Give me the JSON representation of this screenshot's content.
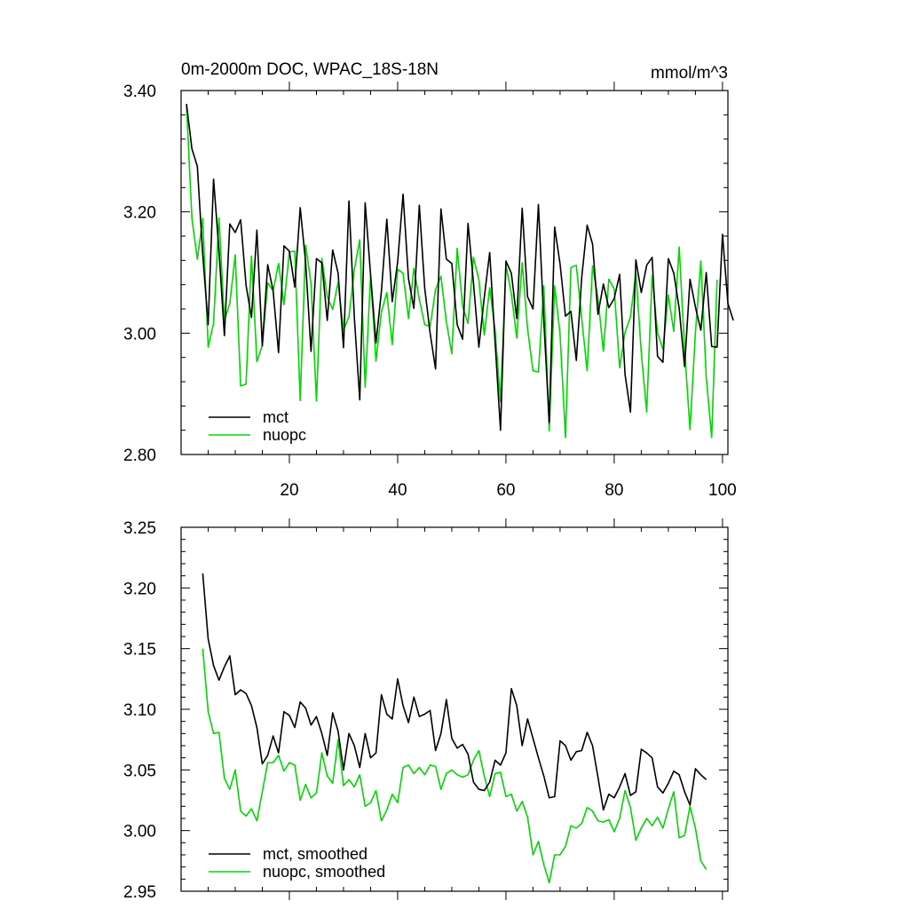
{
  "chart_data": [
    {
      "type": "line",
      "title": "0m-2000m DOC, WPAC_18S-18N",
      "units": "mmol/m^3",
      "xlabel": "",
      "ylabel": "",
      "xlim": [
        0,
        101
      ],
      "ylim": [
        2.8,
        3.4
      ],
      "x_ticks": [
        20,
        40,
        60,
        80,
        100
      ],
      "x_tick_labels": [
        "20",
        "40",
        "60",
        "80",
        "100"
      ],
      "y_ticks": [
        2.8,
        3.0,
        3.2,
        3.4
      ],
      "y_tick_labels": [
        "2.80",
        "3.00",
        "3.20",
        "3.40"
      ],
      "legend_position": "bottom-left",
      "series": [
        {
          "name": "mct",
          "color": "#000000",
          "x_start": 1,
          "values": [
            3.378,
            3.304,
            3.275,
            3.129,
            3.014,
            3.254,
            3.136,
            2.996,
            3.18,
            3.166,
            3.187,
            3.079,
            3.026,
            3.17,
            2.979,
            3.113,
            3.07,
            2.968,
            3.144,
            3.135,
            3.076,
            3.207,
            3.117,
            2.97,
            3.123,
            3.116,
            3.021,
            3.137,
            3.099,
            2.976,
            3.218,
            3.026,
            2.89,
            3.215,
            3.096,
            2.984,
            3.069,
            3.188,
            3.052,
            3.117,
            3.229,
            3.09,
            3.041,
            3.211,
            3.074,
            3.0,
            2.941,
            3.205,
            3.122,
            3.115,
            3.014,
            2.99,
            3.181,
            3.083,
            2.977,
            3.059,
            3.133,
            2.985,
            2.84,
            3.119,
            3.099,
            3.024,
            3.206,
            3.06,
            3.04,
            3.212,
            3.02,
            2.853,
            3.175,
            3.114,
            3.028,
            3.036,
            2.955,
            3.092,
            3.178,
            3.147,
            3.031,
            3.081,
            3.042,
            3.057,
            3.097,
            2.932,
            2.87,
            3.121,
            3.067,
            3.112,
            3.125,
            2.962,
            2.952,
            3.123,
            3.099,
            3.041,
            2.945,
            3.089,
            3.043,
            3.005,
            3.1,
            2.978,
            2.977,
            3.163,
            3.049,
            3.021
          ]
        },
        {
          "name": "nuopc",
          "color": "#00d800",
          "x_start": 1,
          "values": [
            3.375,
            3.189,
            3.122,
            3.189,
            2.977,
            3.016,
            3.19,
            3.021,
            3.049,
            3.129,
            2.913,
            2.916,
            3.127,
            2.953,
            2.98,
            3.083,
            3.07,
            3.115,
            3.047,
            3.134,
            3.135,
            2.889,
            3.145,
            3.082,
            2.888,
            3.123,
            3.06,
            3.039,
            3.084,
            3.005,
            3.027,
            3.105,
            3.154,
            2.911,
            3.096,
            2.954,
            3.035,
            3.067,
            2.981,
            3.105,
            3.099,
            3.024,
            3.107,
            3.056,
            3.014,
            3.011,
            3.072,
            3.094,
            3.019,
            2.966,
            3.14,
            3.044,
            3.016,
            3.125,
            3.088,
            2.997,
            3.075,
            3.004,
            2.887,
            3.112,
            3.065,
            2.992,
            3.116,
            3.007,
            2.938,
            2.936,
            3.078,
            2.839,
            3.078,
            2.998,
            2.828,
            3.108,
            3.112,
            3.024,
            2.938,
            3.111,
            3.058,
            2.97,
            3.089,
            3.073,
            2.943,
            3.001,
            3.027,
            3.1,
            2.968,
            2.87,
            3.095,
            3.001,
            2.973,
            3.063,
            3.003,
            3.142,
            2.972,
            2.841,
            3.001,
            3.119,
            2.927,
            2.828,
            3.088
          ]
        }
      ]
    },
    {
      "type": "line",
      "title": "",
      "xlabel": "",
      "ylabel": "",
      "xlim": [
        0,
        101
      ],
      "ylim": [
        2.95,
        3.25
      ],
      "x_ticks": [
        20,
        40,
        60,
        80,
        100
      ],
      "x_tick_labels": [],
      "y_ticks": [
        2.95,
        3.0,
        3.05,
        3.1,
        3.15,
        3.2,
        3.25
      ],
      "y_tick_labels": [
        "2.95",
        "3.00",
        "3.05",
        "3.10",
        "3.15",
        "3.20",
        "3.25"
      ],
      "legend_position": "bottom-left",
      "series": [
        {
          "name": "mct, smoothed",
          "color": "#000000",
          "x_start": 4,
          "values": [
            3.212,
            3.158,
            3.136,
            3.124,
            3.135,
            3.144,
            3.112,
            3.116,
            3.113,
            3.103,
            3.085,
            3.055,
            3.062,
            3.078,
            3.064,
            3.098,
            3.095,
            3.085,
            3.106,
            3.101,
            3.087,
            3.094,
            3.08,
            3.062,
            3.097,
            3.082,
            3.05,
            3.08,
            3.07,
            3.052,
            3.08,
            3.06,
            3.064,
            3.112,
            3.096,
            3.092,
            3.125,
            3.103,
            3.089,
            3.11,
            3.094,
            3.096,
            3.099,
            3.066,
            3.08,
            3.108,
            3.076,
            3.068,
            3.071,
            3.063,
            3.04,
            3.034,
            3.033,
            3.04,
            3.058,
            3.054,
            3.064,
            3.117,
            3.103,
            3.07,
            3.092,
            3.076,
            3.06,
            3.045,
            3.027,
            3.028,
            3.074,
            3.07,
            3.058,
            3.065,
            3.066,
            3.081,
            3.07,
            3.044,
            3.017,
            3.03,
            3.027,
            3.036,
            3.047,
            3.029,
            3.032,
            3.067,
            3.064,
            3.06,
            3.036,
            3.031,
            3.039,
            3.049,
            3.046,
            3.032,
            3.021,
            3.051,
            3.046,
            3.042
          ]
        },
        {
          "name": "nuopc, smoothed",
          "color": "#00d800",
          "x_start": 4,
          "values": [
            3.15,
            3.098,
            3.08,
            3.081,
            3.043,
            3.034,
            3.05,
            3.016,
            3.012,
            3.018,
            3.008,
            3.032,
            3.056,
            3.056,
            3.062,
            3.049,
            3.056,
            3.054,
            3.025,
            3.038,
            3.027,
            3.031,
            3.064,
            3.045,
            3.039,
            3.075,
            3.037,
            3.042,
            3.036,
            3.046,
            3.02,
            3.023,
            3.033,
            3.008,
            3.017,
            3.03,
            3.023,
            3.052,
            3.054,
            3.047,
            3.052,
            3.046,
            3.054,
            3.053,
            3.034,
            3.047,
            3.05,
            3.046,
            3.044,
            3.046,
            3.058,
            3.066,
            3.045,
            3.028,
            3.047,
            3.048,
            3.028,
            3.03,
            3.016,
            3.024,
            3.011,
            2.98,
            2.991,
            2.972,
            2.957,
            2.98,
            2.98,
            2.987,
            3.004,
            3.002,
            3.006,
            3.019,
            3.016,
            3.008,
            3.007,
            3.009,
            2.999,
            3.01,
            3.033,
            3.019,
            2.992,
            3.002,
            3.01,
            3.004,
            3.011,
            3.002,
            3.018,
            3.032,
            2.994,
            2.996,
            3.02,
            3.002,
            2.975,
            2.968
          ]
        }
      ]
    }
  ]
}
